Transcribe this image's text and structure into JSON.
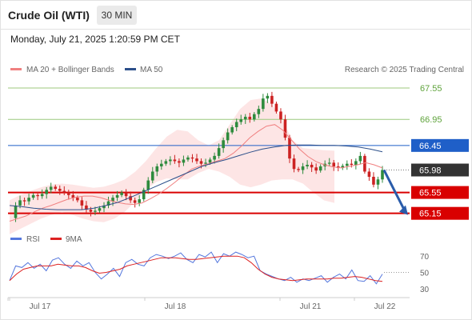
{
  "header": {
    "title": "Crude Oil (WTI)",
    "timeframe": "30 MIN",
    "datetime": "Monday, July 21, 2025 1:20:59 PM CET"
  },
  "legend": {
    "ma20_label": "MA 20 + Bollinger Bands",
    "ma50_label": "MA 50",
    "credit": "Research © 2025 Trading Central",
    "rsi_label": "RSI",
    "ma9_label": "9MA"
  },
  "colors": {
    "ma20": "#f08080",
    "bollinger_fill": "#fde0e0",
    "ma50": "#2c4f8a",
    "resistance": "#9cc97e",
    "pivot": "#1f5fc8",
    "support": "#d90000",
    "current": "#333333",
    "candle_up": "#2e8b3d",
    "candle_down": "#cc2222",
    "rsi": "#5577dd",
    "rsi_ma": "#dd2222",
    "arrow": "#2a5caa"
  },
  "chart_data": [
    {
      "type": "candlestick",
      "x_axis": {
        "ticks": [
          "Jul 17",
          "Jul 18",
          "Jul 21",
          "Jul 22"
        ]
      },
      "y_axis": {
        "ylim": [
          64.9,
          67.75
        ]
      },
      "levels": [
        {
          "value": 67.55,
          "label": "67.55",
          "kind": "resistance"
        },
        {
          "value": 66.95,
          "label": "66.95",
          "kind": "resistance"
        },
        {
          "value": 66.45,
          "label": "66.45",
          "kind": "pivot"
        },
        {
          "value": 65.98,
          "label": "65.98",
          "kind": "current"
        },
        {
          "value": 65.55,
          "label": "65.55",
          "kind": "support"
        },
        {
          "value": 65.15,
          "label": "65.15",
          "kind": "support"
        }
      ],
      "close_path": [
        65.06,
        65.3,
        65.4,
        65.38,
        65.45,
        65.5,
        65.48,
        65.52,
        65.6,
        65.66,
        65.62,
        65.58,
        65.55,
        65.5,
        65.45,
        65.4,
        65.3,
        65.22,
        65.18,
        65.2,
        65.25,
        65.3,
        65.38,
        65.45,
        65.5,
        65.55,
        65.48,
        65.4,
        65.35,
        65.42,
        65.6,
        65.78,
        65.95,
        66.05,
        66.1,
        66.15,
        66.18,
        66.15,
        66.12,
        66.18,
        66.22,
        66.2,
        66.15,
        66.1,
        66.12,
        66.18,
        66.25,
        66.4,
        66.55,
        66.7,
        66.8,
        66.9,
        66.95,
        67.0,
        66.95,
        67.05,
        67.15,
        67.35,
        67.4,
        67.25,
        67.1,
        66.95,
        66.6,
        66.2,
        66.0,
        65.98,
        66.05,
        66.08,
        66.03,
        65.97,
        66.05,
        66.1,
        66.12,
        66.05,
        66.02,
        66.06,
        66.1,
        66.08,
        66.15,
        66.25,
        65.95,
        65.85,
        65.7,
        65.8,
        65.98
      ],
      "ma20": [
        65.0,
        65.05,
        65.1,
        65.18,
        65.25,
        65.3,
        65.36,
        65.42,
        65.46,
        65.48,
        65.48,
        65.45,
        65.4,
        65.36,
        65.33,
        65.32,
        65.35,
        65.43,
        65.52,
        65.63,
        65.75,
        65.88,
        66.0,
        66.06,
        66.1,
        66.15,
        66.2,
        66.3,
        66.44,
        66.6,
        66.72,
        66.82,
        66.85,
        66.74,
        66.56,
        66.38,
        66.24,
        66.14,
        66.08,
        66.04,
        66.02,
        66.05,
        66.08,
        66.12,
        66.08,
        66.02
      ],
      "ma50": [
        65.3,
        65.28,
        65.25,
        65.23,
        65.22,
        65.22,
        65.22,
        65.25,
        65.3,
        65.36,
        65.45,
        65.55,
        65.65,
        65.75,
        65.85,
        65.95,
        66.05,
        66.12,
        66.18,
        66.25,
        66.32,
        66.38,
        66.42,
        66.45,
        66.46,
        66.46,
        66.45,
        66.45,
        66.44,
        66.42,
        66.38,
        66.33
      ],
      "boll_upper": [
        65.4,
        65.5,
        65.58,
        65.65,
        65.7,
        65.72,
        65.7,
        65.67,
        65.64,
        65.66,
        65.72,
        65.8,
        65.95,
        66.15,
        66.4,
        66.62,
        66.75,
        66.72,
        66.55,
        66.45,
        66.55,
        66.85,
        67.15,
        67.32,
        67.35,
        67.25,
        66.95,
        66.55,
        66.4,
        66.38,
        66.36,
        66.35
      ],
      "boll_lower": [
        64.75,
        64.85,
        64.95,
        65.05,
        65.12,
        65.18,
        65.12,
        65.05,
        65.0,
        64.98,
        65.05,
        65.18,
        65.38,
        65.6,
        65.75,
        65.82,
        65.8,
        65.8,
        65.92,
        66.0,
        65.95,
        65.85,
        65.7,
        65.65,
        65.7,
        65.78,
        65.8,
        65.8,
        65.72,
        65.55,
        65.4,
        65.35
      ],
      "forecast_arrow": {
        "from": 65.98,
        "to": 65.15
      }
    },
    {
      "type": "line",
      "y_axis": {
        "ticks": [
          70,
          50,
          30
        ],
        "ylim": [
          25,
          78
        ]
      },
      "series": [
        {
          "name": "RSI",
          "values": [
            40,
            58,
            56,
            62,
            55,
            60,
            52,
            65,
            68,
            60,
            55,
            64,
            58,
            62,
            50,
            42,
            48,
            55,
            45,
            62,
            66,
            60,
            58,
            68,
            72,
            70,
            67,
            70,
            74,
            66,
            62,
            72,
            69,
            75,
            62,
            73,
            70,
            75,
            72,
            68,
            70,
            52,
            48,
            45,
            42,
            40,
            44,
            38,
            42,
            40,
            43,
            46,
            38,
            44,
            48,
            42,
            53,
            40,
            39,
            46,
            36,
            48
          ],
          "color_key": "rsi"
        },
        {
          "name": "9MA",
          "values": [
            40,
            48,
            54,
            56,
            58,
            58,
            58,
            60,
            59,
            58,
            58,
            56,
            52,
            49,
            50,
            52,
            54,
            58,
            60,
            62,
            64,
            66,
            68,
            68,
            68,
            67,
            66,
            66,
            67,
            68,
            69,
            70,
            70,
            70,
            68,
            62,
            54,
            48,
            44,
            42,
            41,
            40,
            41,
            42,
            42,
            42,
            42,
            43,
            43,
            44,
            45,
            44,
            42,
            40,
            39
          ],
          "color_key": "rsi_ma"
        }
      ]
    }
  ]
}
